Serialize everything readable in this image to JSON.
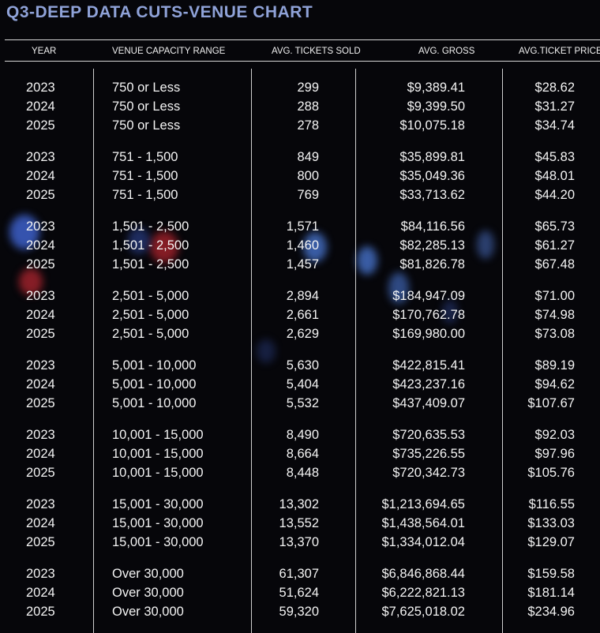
{
  "chart_data": {
    "type": "table",
    "title": "Q3-DEEP DATA CUTS-VENUE CHART",
    "columns": [
      "YEAR",
      "VENUE CAPACITY RANGE",
      "AVG. TICKETS SOLD",
      "AVG. GROSS",
      "AVG.TICKET PRICE"
    ],
    "rows": [
      [
        "2023",
        "750 or Less",
        "299",
        "$9,389.41",
        "$28.62"
      ],
      [
        "2024",
        "750 or Less",
        "288",
        "$9,399.50",
        "$31.27"
      ],
      [
        "2025",
        "750 or Less",
        "278",
        "$10,075.18",
        "$34.74"
      ],
      [
        "2023",
        "751 - 1,500",
        "849",
        "$35,899.81",
        "$45.83"
      ],
      [
        "2024",
        "751 - 1,500",
        "800",
        "$35,049.36",
        "$48.01"
      ],
      [
        "2025",
        "751 - 1,500",
        "769",
        "$33,713.62",
        "$44.20"
      ],
      [
        "2023",
        "1,501 - 2,500",
        "1,571",
        "$84,116.56",
        "$65.73"
      ],
      [
        "2024",
        "1,501 - 2,500",
        "1,460",
        "$82,285.13",
        "$61.27"
      ],
      [
        "2025",
        "1,501 - 2,500",
        "1,457",
        "$81,826.78",
        "$67.48"
      ],
      [
        "2023",
        "2,501 - 5,000",
        "2,894",
        "$184,947.09",
        "$71.00"
      ],
      [
        "2024",
        "2,501 - 5,000",
        "2,661",
        "$170,762.78",
        "$74.98"
      ],
      [
        "2025",
        "2,501 - 5,000",
        "2,629",
        "$169,980.00",
        "$73.08"
      ],
      [
        "2023",
        "5,001 - 10,000",
        "5,630",
        "$422,815.41",
        "$89.19"
      ],
      [
        "2024",
        "5,001 - 10,000",
        "5,404",
        "$423,237.16",
        "$94.62"
      ],
      [
        "2025",
        "5,001 - 10,000",
        "5,532",
        "$437,409.07",
        "$107.67"
      ],
      [
        "2023",
        "10,001 - 15,000",
        "8,490",
        "$720,635.53",
        "$92.03"
      ],
      [
        "2024",
        "10,001 - 15,000",
        "8,664",
        "$735,226.55",
        "$97.96"
      ],
      [
        "2025",
        "10,001 - 15,000",
        "8,448",
        "$720,342.73",
        "$105.76"
      ],
      [
        "2023",
        "15,001 - 30,000",
        "13,302",
        "$1,213,694.65",
        "$116.55"
      ],
      [
        "2024",
        "15,001 - 30,000",
        "13,552",
        "$1,438,564.01",
        "$133.03"
      ],
      [
        "2025",
        "15,001 - 30,000",
        "13,370",
        "$1,334,012.04",
        "$129.07"
      ],
      [
        "2023",
        "Over 30,000",
        "61,307",
        "$6,846,868.44",
        "$159.58"
      ],
      [
        "2024",
        "Over 30,000",
        "51,624",
        "$6,222,821.13",
        "$181.14"
      ],
      [
        "2025",
        "Over 30,000",
        "59,320",
        "$7,625,018.02",
        "$234.96"
      ]
    ]
  },
  "colors": {
    "background": "#06060a",
    "title": "#8fa2d8",
    "text": "#f4f4f4",
    "rules": "#d8d8d8"
  }
}
